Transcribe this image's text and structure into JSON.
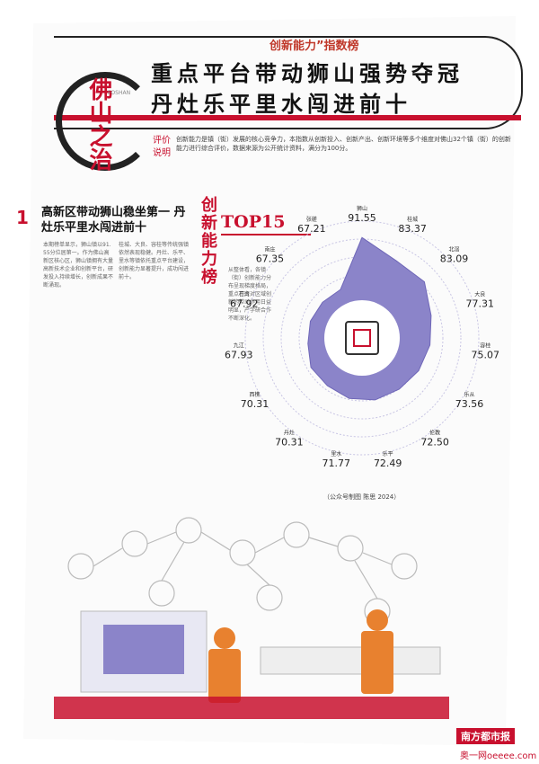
{
  "header": {
    "top_tag": "创新能力”指数榜",
    "title_line1": "重点平台带动狮山强势夺冠",
    "title_line2": "丹灶乐平里水闯进前十"
  },
  "logo": {
    "text": "佛山之治",
    "sub": "FOSHAN"
  },
  "intro": {
    "label": "评价说明",
    "text": "创新能力是镇（街）发展的核心竞争力，本指数从创新投入、创新产出、创新环境等多个维度对佛山32个镇（街）的创新能力进行综合评价，数据来源为公开统计资料，满分为100分。"
  },
  "section": {
    "number": "1",
    "title": "高新区带动狮山稳坐第一 丹灶乐平里水闯进前十",
    "vertical_title": "创新能力榜",
    "top_label": "TOP15",
    "columns": [
      "本期榜单显示，狮山镇以91.55分位居第一。作为佛山高新区核心区，狮山镇拥有大量高新技术企业和创新平台，研发投入持续增长，创新成果不断涌现。",
      "桂城、大良、容桂等传统强镇依然表现稳健。丹灶、乐平、里水等镇依托重点平台建设，创新能力显著提升，成功闯进前十。",
      "从整体看，各镇（街）创新能力分布呈现梯度格局，重点平台对区域创新的带动作用日益明显，产学研合作不断深化。"
    ]
  },
  "chart_data": {
    "type": "radar",
    "categories": [
      "狮山",
      "桂城",
      "北滘",
      "大良",
      "容桂",
      "乐从",
      "伦教",
      "乐平",
      "里水",
      "丹灶",
      "西樵",
      "九江",
      "石湾",
      "南庄",
      "张槎"
    ],
    "values": [
      91.55,
      83.37,
      83.09,
      77.31,
      75.07,
      73.56,
      72.5,
      72.49,
      71.77,
      70.31,
      70.31,
      67.93,
      67.92,
      67.35,
      67.21
    ],
    "title": "TOP15",
    "source": "（公众号制图 陈思 2024）"
  },
  "brand": {
    "name": "南方都市报",
    "site": "奥一网oeeee.com"
  },
  "colors": {
    "accent": "#c8102e",
    "radar_fill": "#8b84c9",
    "ink": "#222222"
  }
}
